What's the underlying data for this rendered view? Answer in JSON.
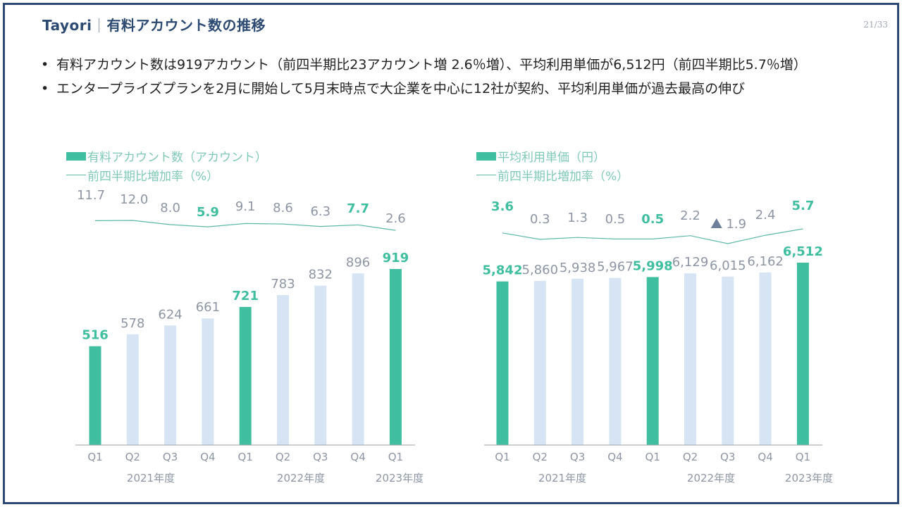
{
  "header": {
    "brand": "Tayori",
    "title": "有料アカウント数の推移",
    "page_number": "21/33"
  },
  "bullets": [
    "有料アカウント数は919アカウント（前四半期比23アカウント増 2.6％増）、平均利用単価が6,512円（前四半期比5.7％増）",
    "エンタープライズプランを2月に開始して5月末時点で大企業を中心に12社が契約、平均利用単価が過去最高の伸び"
  ],
  "colors": {
    "highlight_bar": "#3fbf9f",
    "normal_bar": "#d6e4f3",
    "highlight_label": "#3fbf9f",
    "normal_label": "#8e96a3",
    "line": "#5cb9a7",
    "frame": "#2c4a72",
    "down_marker": "#6e7f9a"
  },
  "chart_data": [
    {
      "type": "bar",
      "legend_bar": "有料アカウント数（アカウント）",
      "legend_line": "前四半期比増加率（%）",
      "categories": [
        "Q1",
        "Q2",
        "Q3",
        "Q4",
        "Q1",
        "Q2",
        "Q3",
        "Q4",
        "Q1"
      ],
      "year_labels": [
        "2021年度",
        "2022年度",
        "2023年度"
      ],
      "values": [
        516,
        578,
        624,
        661,
        721,
        783,
        832,
        896,
        919
      ],
      "value_labels": [
        "516",
        "578",
        "624",
        "661",
        "721",
        "783",
        "832",
        "896",
        "919"
      ],
      "growth_rates": [
        11.7,
        12.0,
        8.0,
        5.9,
        9.1,
        8.6,
        6.3,
        7.7,
        2.6
      ],
      "growth_labels": [
        "11.7",
        "12.0",
        "8.0",
        "5.9",
        "9.1",
        "8.6",
        "6.3",
        "7.7",
        "2.6"
      ],
      "highlight": [
        true,
        false,
        false,
        false,
        true,
        false,
        false,
        false,
        true
      ],
      "rate_highlight": [
        false,
        false,
        false,
        true,
        false,
        false,
        false,
        true,
        false
      ],
      "rate_down": [
        false,
        false,
        false,
        false,
        false,
        false,
        false,
        false,
        false
      ]
    },
    {
      "type": "bar",
      "legend_bar": "平均利用単価（円）",
      "legend_line": "前四半期比増加率（%）",
      "categories": [
        "Q1",
        "Q2",
        "Q3",
        "Q4",
        "Q1",
        "Q2",
        "Q3",
        "Q4",
        "Q1"
      ],
      "year_labels": [
        "2021年度",
        "2022年度",
        "2023年度"
      ],
      "values": [
        5842,
        5860,
        5938,
        5967,
        5998,
        6129,
        6015,
        6162,
        6512
      ],
      "value_labels": [
        "5,842",
        "5,860",
        "5,938",
        "5,967",
        "5,998",
        "6,129",
        "6,015",
        "6,162",
        "6,512"
      ],
      "growth_rates": [
        3.6,
        0.3,
        1.3,
        0.5,
        0.5,
        2.2,
        -1.9,
        2.4,
        5.7
      ],
      "growth_labels": [
        "3.6",
        "0.3",
        "1.3",
        "0.5",
        "0.5",
        "2.2",
        "1.9",
        "2.4",
        "5.7"
      ],
      "highlight": [
        true,
        false,
        false,
        false,
        true,
        false,
        false,
        false,
        true
      ],
      "rate_highlight": [
        true,
        false,
        false,
        false,
        true,
        false,
        false,
        false,
        true
      ],
      "rate_down": [
        false,
        false,
        false,
        false,
        false,
        false,
        true,
        false,
        false
      ]
    }
  ]
}
